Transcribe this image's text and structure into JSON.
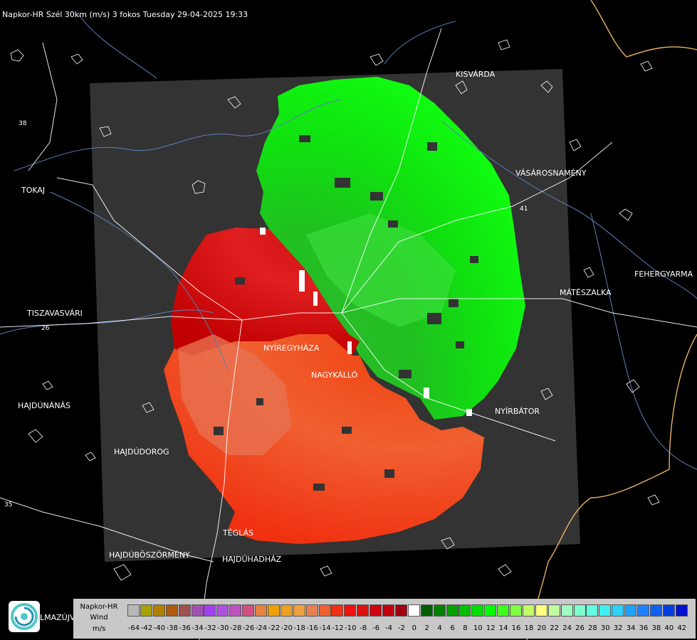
{
  "header": {
    "title": "Napkor-HR Szél 30km (m/s) 3 fokos Tuesday 29-04-2025 19:33"
  },
  "cities": [
    {
      "id": "kisvarda",
      "name": "KISVÁRDA"
    },
    {
      "id": "vasarosnameny",
      "name": "VÁSÁROSNAMÉNY"
    },
    {
      "id": "tokaj",
      "name": "TOKAJ"
    },
    {
      "id": "fehergyarmat",
      "name": "FEHERGYARMA"
    },
    {
      "id": "mateszalka",
      "name": "MÁTÉSZALKA"
    },
    {
      "id": "tiszavasvari",
      "name": "TISZAVASVÁRI"
    },
    {
      "id": "nyiregyhaza",
      "name": "NYÍREGYHÁZA"
    },
    {
      "id": "nagykallo",
      "name": "NAGYKÁLLÓ"
    },
    {
      "id": "hajdunanas",
      "name": "HAJDÚNÁNÁS"
    },
    {
      "id": "nyirbator",
      "name": "NYÍRBÁTOR"
    },
    {
      "id": "hajdudorog",
      "name": "HAJDÚDOROG"
    },
    {
      "id": "teglas",
      "name": "TÉGLÁS"
    },
    {
      "id": "hajduboszormeny",
      "name": "HAJDÚBÖSZÖRMÉNY"
    },
    {
      "id": "hajduhadhaz",
      "name": "HAJDÚHADHÁZ"
    },
    {
      "id": "balmazujvaros",
      "name": "LMAZÚJVÁR"
    }
  ],
  "roads": [
    {
      "id": "r26",
      "label": "26"
    },
    {
      "id": "r35",
      "label": "35"
    },
    {
      "id": "r41",
      "label": "41"
    },
    {
      "id": "r38",
      "label": "38"
    }
  ],
  "legend": {
    "line1": "Napkor-HR",
    "line2": "Wind",
    "line3": "m/s",
    "bins": [
      {
        "value": "-64",
        "color": "#b8b8b8"
      },
      {
        "value": "-42",
        "color": "#a9a300"
      },
      {
        "value": "-40",
        "color": "#b28000"
      },
      {
        "value": "-38",
        "color": "#b05a10"
      },
      {
        "value": "-36",
        "color": "#a05050"
      },
      {
        "value": "-34",
        "color": "#a050b0"
      },
      {
        "value": "-32",
        "color": "#a040f0"
      },
      {
        "value": "-30",
        "color": "#b050e0"
      },
      {
        "value": "-28",
        "color": "#c050c0"
      },
      {
        "value": "-26",
        "color": "#d05080"
      },
      {
        "value": "-24",
        "color": "#e88040"
      },
      {
        "value": "-22",
        "color": "#f0a000"
      },
      {
        "value": "-20",
        "color": "#f0a020"
      },
      {
        "value": "-18",
        "color": "#f0a040"
      },
      {
        "value": "-16",
        "color": "#e88050"
      },
      {
        "value": "-14",
        "color": "#f06030"
      },
      {
        "value": "-12",
        "color": "#f03010"
      },
      {
        "value": "-10",
        "color": "#f01010"
      },
      {
        "value": "-8",
        "color": "#e01010"
      },
      {
        "value": "-6",
        "color": "#d00010"
      },
      {
        "value": "-4",
        "color": "#c00010"
      },
      {
        "value": "-2",
        "color": "#a00010"
      },
      {
        "value": "0",
        "color": "#ffffff"
      },
      {
        "value": "2",
        "color": "#006000"
      },
      {
        "value": "4",
        "color": "#008000"
      },
      {
        "value": "6",
        "color": "#00a000"
      },
      {
        "value": "8",
        "color": "#00c000"
      },
      {
        "value": "10",
        "color": "#00e000"
      },
      {
        "value": "12",
        "color": "#00ff00"
      },
      {
        "value": "14",
        "color": "#40ff20"
      },
      {
        "value": "16",
        "color": "#80ff40"
      },
      {
        "value": "18",
        "color": "#c0ff60"
      },
      {
        "value": "20",
        "color": "#ffff80"
      },
      {
        "value": "22",
        "color": "#c0ffa0"
      },
      {
        "value": "24",
        "color": "#a0ffc0"
      },
      {
        "value": "26",
        "color": "#80ffd0"
      },
      {
        "value": "28",
        "color": "#60ffe0"
      },
      {
        "value": "30",
        "color": "#40f0f0"
      },
      {
        "value": "32",
        "color": "#30d0ff"
      },
      {
        "value": "34",
        "color": "#20a0ff"
      },
      {
        "value": "36",
        "color": "#2080ff"
      },
      {
        "value": "38",
        "color": "#1060f0"
      },
      {
        "value": "40",
        "color": "#0040e0"
      },
      {
        "value": "42",
        "color": "#0010d0"
      }
    ]
  },
  "colors": {
    "coverage": "#333333",
    "outline": "#ffffff",
    "river": "#5b7fb8"
  }
}
